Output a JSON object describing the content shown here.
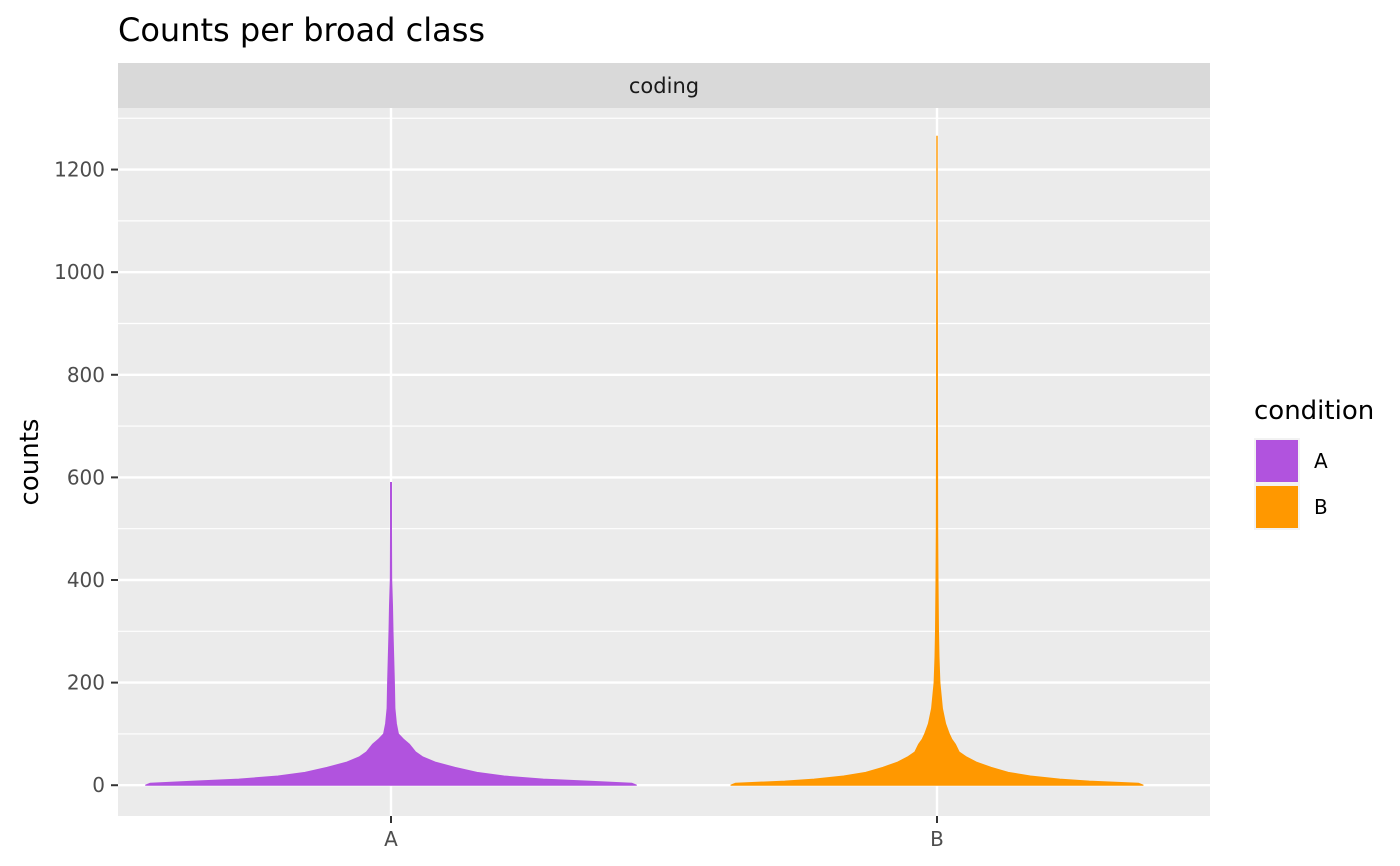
{
  "chart_data": {
    "type": "violin",
    "title": "Counts per broad class",
    "facet_label": "coding",
    "xlabel": "",
    "ylabel": "counts",
    "categories": [
      "A",
      "B"
    ],
    "ylim": [
      -60,
      1320
    ],
    "y_ticks": [
      0,
      200,
      400,
      600,
      800,
      1000,
      1200
    ],
    "grid": true,
    "legend": {
      "title": "condition",
      "position": "right",
      "entries": [
        {
          "label": "A",
          "color": "#B153DE"
        },
        {
          "label": "B",
          "color": "#FF9800"
        }
      ]
    },
    "series": [
      {
        "category": "A",
        "color": "#B153DE",
        "min": 0,
        "max": 590,
        "density_profile": [
          [
            0,
            1.0
          ],
          [
            4,
            0.98
          ],
          [
            8,
            0.8
          ],
          [
            12,
            0.62
          ],
          [
            18,
            0.46
          ],
          [
            25,
            0.35
          ],
          [
            35,
            0.26
          ],
          [
            45,
            0.18
          ],
          [
            55,
            0.13
          ],
          [
            65,
            0.1
          ],
          [
            80,
            0.075
          ],
          [
            90,
            0.05
          ],
          [
            100,
            0.03
          ],
          [
            120,
            0.022
          ],
          [
            150,
            0.016
          ],
          [
            200,
            0.014
          ],
          [
            250,
            0.011
          ],
          [
            300,
            0.008
          ],
          [
            350,
            0.006
          ],
          [
            400,
            0.003
          ],
          [
            500,
            0.002
          ],
          [
            590,
            0.002
          ]
        ]
      },
      {
        "category": "B",
        "color": "#FF9800",
        "min": 0,
        "max": 1265,
        "density_profile": [
          [
            0,
            0.84
          ],
          [
            4,
            0.82
          ],
          [
            8,
            0.62
          ],
          [
            12,
            0.5
          ],
          [
            18,
            0.38
          ],
          [
            25,
            0.29
          ],
          [
            35,
            0.22
          ],
          [
            45,
            0.16
          ],
          [
            55,
            0.12
          ],
          [
            65,
            0.09
          ],
          [
            80,
            0.075
          ],
          [
            90,
            0.06
          ],
          [
            100,
            0.05
          ],
          [
            120,
            0.035
          ],
          [
            150,
            0.022
          ],
          [
            200,
            0.012
          ],
          [
            250,
            0.008
          ],
          [
            300,
            0.006
          ],
          [
            400,
            0.004
          ],
          [
            500,
            0.003
          ],
          [
            700,
            0.002
          ],
          [
            900,
            0.0015
          ],
          [
            1100,
            0.001
          ],
          [
            1265,
            0.001
          ]
        ]
      }
    ]
  }
}
